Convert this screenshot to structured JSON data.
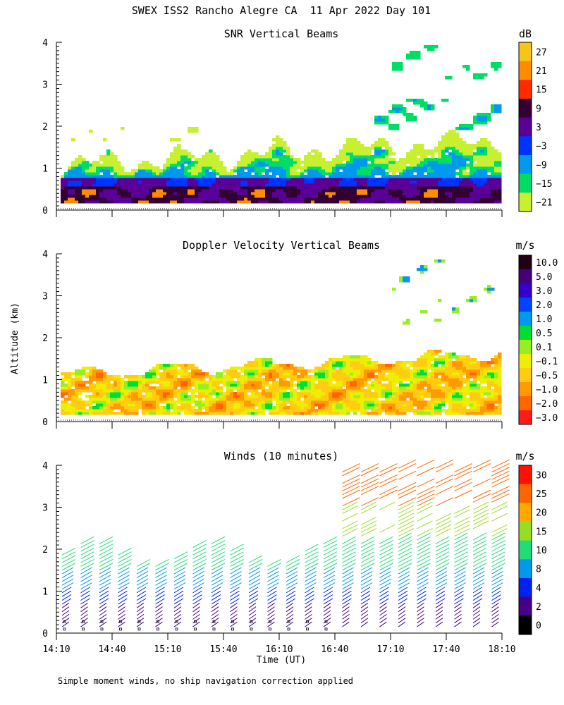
{
  "page_title": "SWEX ISS2 Rancho Alegre CA  11 Apr 2022 Day 101",
  "footnote": "Simple moment winds, no ship navigation correction applied",
  "shared_axes": {
    "ylabel": "Altitude (km)",
    "xlabel": "Time (UT)",
    "x_ticks": [
      "14:10",
      "14:40",
      "15:10",
      "15:40",
      "16:10",
      "16:40",
      "17:10",
      "17:40",
      "18:10"
    ],
    "y_ticks": [
      "0",
      "1",
      "2",
      "3",
      "4"
    ]
  },
  "chart_data": [
    {
      "type": "heatmap",
      "title": "SNR Vertical Beams",
      "colorbar_unit": "dB",
      "colorbar_labels": [
        "27",
        "21",
        "15",
        "9",
        "3",
        "−3",
        "−9",
        "−15",
        "−21"
      ],
      "colorbar_colors": [
        "#f5c518",
        "#ff8c00",
        "#ff2a00",
        "#330033",
        "#5a0099",
        "#0033ff",
        "#0099ee",
        "#00dd66",
        "#c8f030"
      ],
      "xlim": [
        "14:10",
        "18:10"
      ],
      "ylim": [
        0,
        4
      ],
      "ylabel": "",
      "xlabel": ""
    },
    {
      "type": "heatmap",
      "title": "Doppler Velocity Vertical Beams",
      "colorbar_unit": "m/s",
      "colorbar_labels": [
        "10.0",
        "5.0",
        "3.0",
        "2.0",
        "1.0",
        "0.5",
        "0.1",
        "−0.1",
        "−0.5",
        "−1.0",
        "−2.0",
        "−3.0"
      ],
      "colorbar_colors": [
        "#220011",
        "#440077",
        "#3300cc",
        "#0044ff",
        "#0099ee",
        "#00dd33",
        "#99ee22",
        "#eeee00",
        "#ffcc11",
        "#ff9a00",
        "#ff6600",
        "#ff1a1a"
      ],
      "xlim": [
        "14:10",
        "18:10"
      ],
      "ylim": [
        0,
        4
      ],
      "ylabel": "Altitude (km)",
      "xlabel": ""
    },
    {
      "type": "scatter",
      "title": "Winds (10 minutes)",
      "colorbar_unit": "m/s",
      "colorbar_labels": [
        "30",
        "25",
        "20",
        "15",
        "10",
        "8",
        "4",
        "2",
        "0"
      ],
      "colorbar_colors": [
        "#ff1100",
        "#ff6600",
        "#ffaa00",
        "#99dd22",
        "#22dd77",
        "#0099ee",
        "#0022ee",
        "#440088",
        "#000000"
      ],
      "xlim": [
        "14:10",
        "18:10"
      ],
      "ylim": [
        0,
        4
      ],
      "ylabel": "",
      "xlabel": "Time (UT)"
    }
  ]
}
